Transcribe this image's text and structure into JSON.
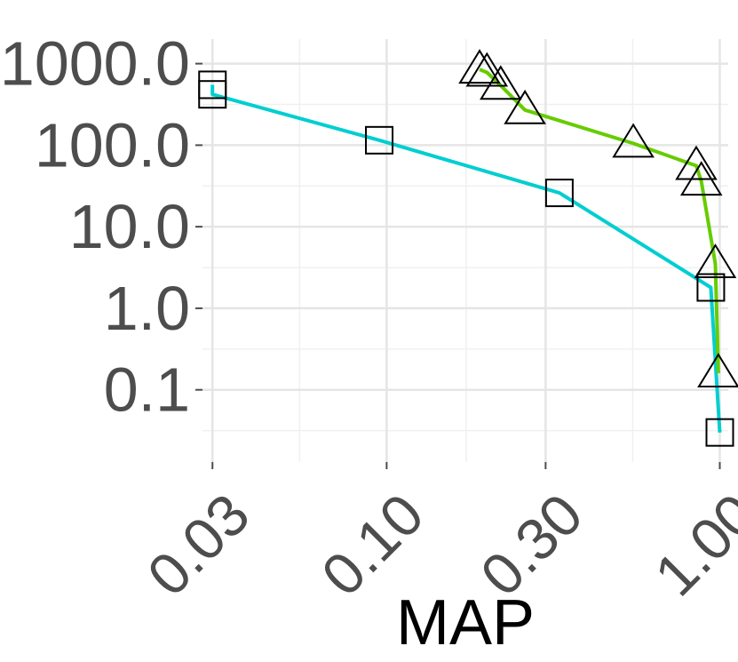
{
  "chart_data": {
    "type": "line",
    "xlabel": "MAP",
    "ylabel": "",
    "x_scale": "log10",
    "y_scale": "log10",
    "xlim": [
      0.028,
      1.06
    ],
    "ylim": [
      0.013,
      2000
    ],
    "x_ticks": [
      {
        "value": 0.03,
        "label": "0.03"
      },
      {
        "value": 0.1,
        "label": "0.10"
      },
      {
        "value": 0.3,
        "label": "0.30"
      },
      {
        "value": 1.0,
        "label": "1.00"
      }
    ],
    "x_minor_ticks": [
      0.0548,
      0.1732,
      0.5477
    ],
    "y_ticks": [
      {
        "value": 0.1,
        "label": "0.1"
      },
      {
        "value": 1.0,
        "label": "1.0"
      },
      {
        "value": 10.0,
        "label": "10.0"
      },
      {
        "value": 100.0,
        "label": "100.0"
      },
      {
        "value": 1000.0,
        "label": "1000.0"
      }
    ],
    "y_minor_ticks": [
      0.0316,
      0.316,
      3.16,
      31.6,
      316
    ],
    "grid": true,
    "legend": "none",
    "series": [
      {
        "color": "#00CED1",
        "marker": "square",
        "points": [
          {
            "x": 0.03,
            "y": 550
          },
          {
            "x": 0.03,
            "y": 420
          },
          {
            "x": 0.095,
            "y": 115
          },
          {
            "x": 0.33,
            "y": 26
          },
          {
            "x": 0.94,
            "y": 1.8
          },
          {
            "x": 1.0,
            "y": 0.03
          }
        ]
      },
      {
        "color": "#66CC00",
        "marker": "triangle",
        "points": [
          {
            "x": 0.19,
            "y": 850
          },
          {
            "x": 0.2,
            "y": 780
          },
          {
            "x": 0.22,
            "y": 540
          },
          {
            "x": 0.26,
            "y": 270
          },
          {
            "x": 0.55,
            "y": 105
          },
          {
            "x": 0.85,
            "y": 56
          },
          {
            "x": 0.88,
            "y": 36
          },
          {
            "x": 0.97,
            "y": 3.5
          },
          {
            "x": 0.99,
            "y": 0.16
          }
        ]
      }
    ]
  }
}
